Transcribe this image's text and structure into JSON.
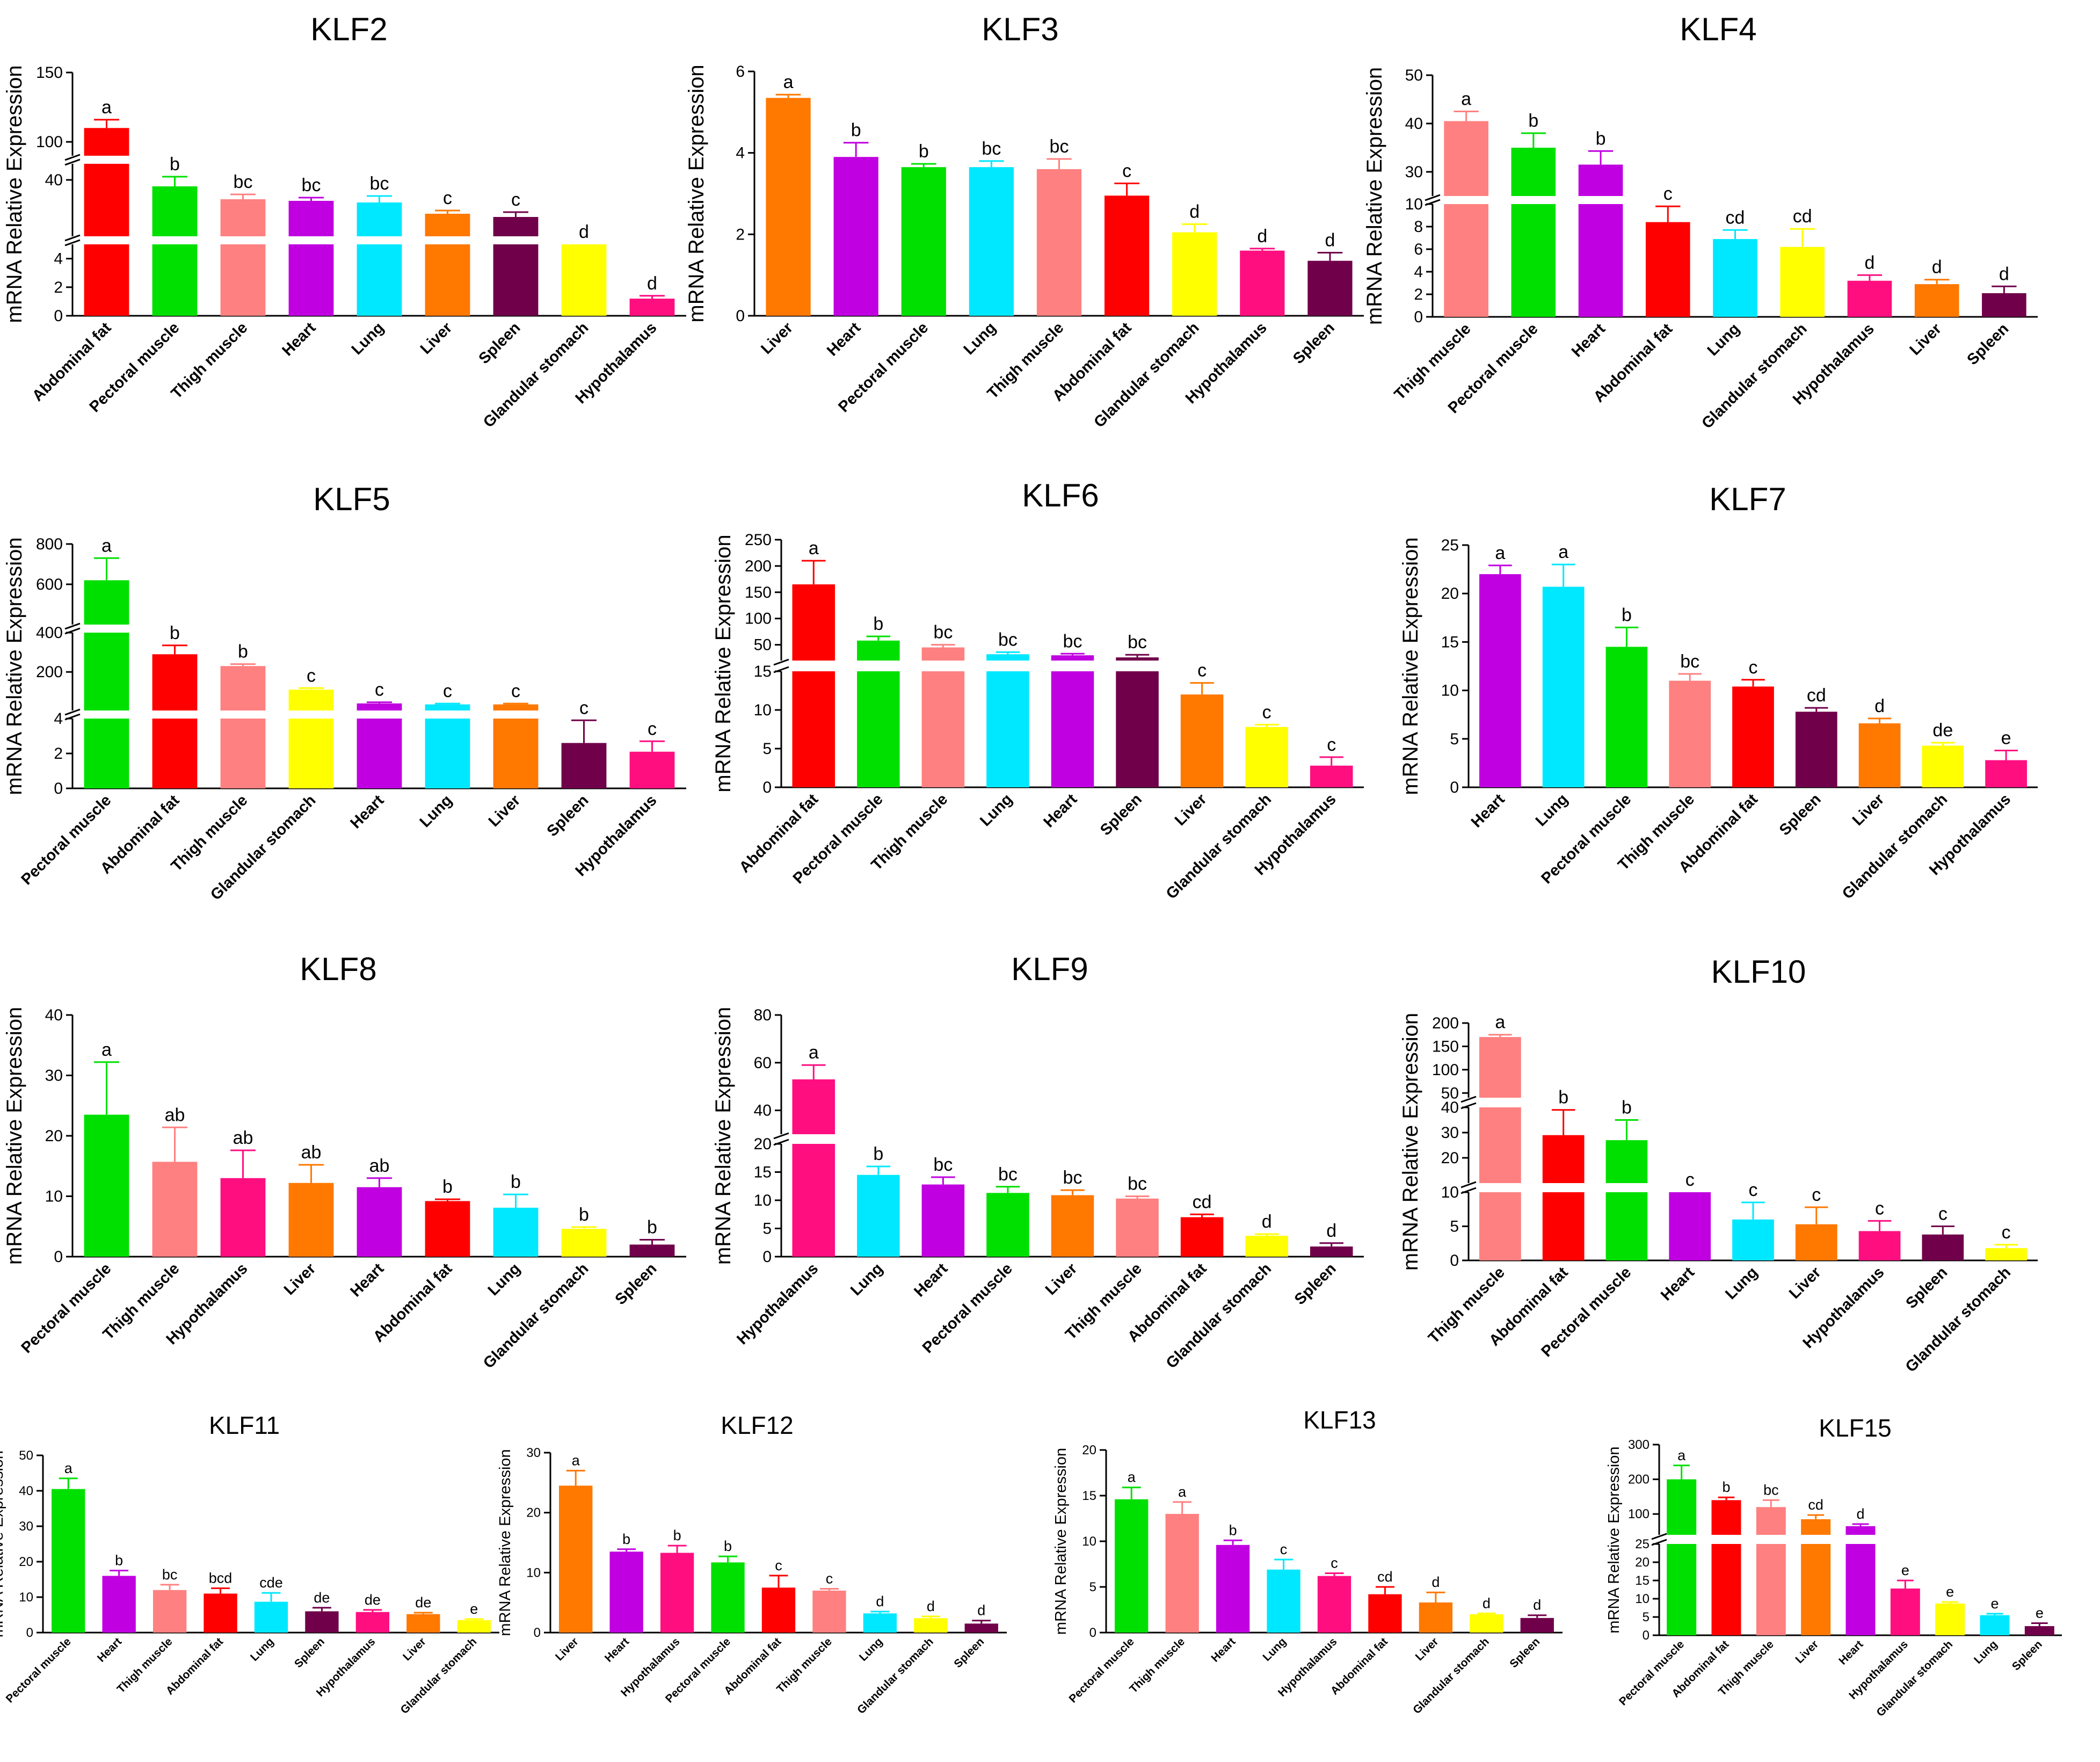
{
  "figure": {
    "ylabel": "mRNA Relative Expression"
  },
  "colors": {
    "red": "#ff0000",
    "green": "#00e000",
    "salmon": "#ff8080",
    "purple": "#c000e0",
    "cyan": "#00e8ff",
    "orange": "#ff7800",
    "maroon": "#70004a",
    "yellow": "#ffff00",
    "pink": "#ff0e80"
  },
  "chart_data": [
    {
      "type": "bar",
      "title": "KLF2",
      "ylabel": "mRNA Relative Expression",
      "segments": [
        {
          "min": 0,
          "max": 5,
          "ticks": [
            0,
            2,
            4
          ]
        },
        {
          "min": 5,
          "max": 50,
          "ticks": [
            40
          ]
        },
        {
          "min": 90,
          "max": 150,
          "ticks": [
            100,
            150
          ]
        }
      ],
      "categories": [
        "Abdominal fat",
        "Pectoral muscle",
        "Thigh muscle",
        "Heart",
        "Lung",
        "Liver",
        "Spleen",
        "Glandular stomach",
        "Hypothalamus"
      ],
      "colors": [
        "red",
        "green",
        "salmon",
        "purple",
        "cyan",
        "orange",
        "maroon",
        "yellow",
        "pink"
      ],
      "values": [
        110,
        36,
        28,
        27,
        26,
        19,
        17,
        5,
        1.2
      ],
      "errors": [
        6,
        6,
        3,
        2,
        4,
        2,
        3,
        0,
        0.2
      ],
      "letters": [
        "a",
        "b",
        "bc",
        "bc",
        "bc",
        "c",
        "c",
        "d",
        "d"
      ]
    },
    {
      "type": "bar",
      "title": "KLF3",
      "ylabel": "mRNA Relative Expression",
      "segments": [
        {
          "min": 0,
          "max": 6,
          "ticks": [
            0,
            2,
            4,
            6
          ]
        }
      ],
      "categories": [
        "Liver",
        "Heart",
        "Pectoral muscle",
        "Lung",
        "Thigh muscle",
        "Abdominal fat",
        "Glandular stomach",
        "Hypothalamus",
        "Spleen"
      ],
      "colors": [
        "orange",
        "purple",
        "green",
        "cyan",
        "salmon",
        "red",
        "yellow",
        "pink",
        "maroon"
      ],
      "values": [
        5.35,
        3.9,
        3.65,
        3.65,
        3.6,
        2.95,
        2.05,
        1.6,
        1.35
      ],
      "errors": [
        0.08,
        0.35,
        0.08,
        0.15,
        0.25,
        0.3,
        0.2,
        0.05,
        0.2
      ],
      "letters": [
        "a",
        "b",
        "b",
        "bc",
        "bc",
        "c",
        "d",
        "d",
        "d"
      ]
    },
    {
      "type": "bar",
      "title": "KLF4",
      "ylabel": "mRNA Relative Expression",
      "segments": [
        {
          "min": 0,
          "max": 10,
          "ticks": [
            0,
            2,
            4,
            6,
            8,
            10
          ]
        },
        {
          "min": 25,
          "max": 50,
          "ticks": [
            30,
            40,
            50
          ]
        }
      ],
      "categories": [
        "Thigh muscle",
        "Pectoral muscle",
        "Heart",
        "Abdominal fat",
        "Lung",
        "Glandular stomach",
        "Hypothalamus",
        "Liver",
        "Spleen"
      ],
      "colors": [
        "salmon",
        "green",
        "purple",
        "red",
        "cyan",
        "yellow",
        "pink",
        "orange",
        "maroon"
      ],
      "values": [
        40.5,
        35,
        31.5,
        8.4,
        6.9,
        6.2,
        3.2,
        2.9,
        2.1
      ],
      "errors": [
        2,
        3,
        2.8,
        1.4,
        0.8,
        1.6,
        0.5,
        0.4,
        0.6
      ],
      "letters": [
        "a",
        "b",
        "b",
        "c",
        "cd",
        "cd",
        "d",
        "d",
        "d"
      ]
    },
    {
      "type": "bar",
      "title": "KLF5",
      "ylabel": "mRNA Relative Expression",
      "segments": [
        {
          "min": 0,
          "max": 4,
          "ticks": [
            0,
            2,
            4
          ]
        },
        {
          "min": 4,
          "max": 400,
          "ticks": [
            200,
            400
          ]
        },
        {
          "min": 400,
          "max": 800,
          "ticks": [
            600,
            800
          ]
        }
      ],
      "categories": [
        "Pectoral muscle",
        "Abdominal fat",
        "Thigh muscle",
        "Glandular stomach",
        "Heart",
        "Lung",
        "Liver",
        "Spleen",
        "Hypothalamus"
      ],
      "colors": [
        "green",
        "red",
        "salmon",
        "yellow",
        "purple",
        "cyan",
        "orange",
        "maroon",
        "pink"
      ],
      "values": [
        620,
        290,
        230,
        110,
        40,
        35,
        35,
        2.6,
        2.1
      ],
      "errors": [
        110,
        45,
        10,
        8,
        6,
        4,
        4,
        1.3,
        0.6
      ],
      "letters": [
        "a",
        "b",
        "b",
        "c",
        "c",
        "c",
        "c",
        "c",
        "c"
      ]
    },
    {
      "type": "bar",
      "title": "KLF6",
      "ylabel": "mRNA Relative Expression",
      "segments": [
        {
          "min": 0,
          "max": 15,
          "ticks": [
            0,
            5,
            10,
            15
          ]
        },
        {
          "min": 20,
          "max": 250,
          "ticks": [
            50,
            100,
            150,
            200,
            250
          ]
        }
      ],
      "categories": [
        "Abdominal fat",
        "Pectoral muscle",
        "Thigh muscle",
        "Lung",
        "Heart",
        "Spleen",
        "Liver",
        "Glandular stomach",
        "Hypothalamus"
      ],
      "colors": [
        "red",
        "green",
        "salmon",
        "cyan",
        "purple",
        "maroon",
        "orange",
        "yellow",
        "pink"
      ],
      "values": [
        165,
        58,
        45,
        32,
        30,
        26,
        12,
        7.8,
        2.8
      ],
      "errors": [
        45,
        8,
        5,
        4,
        3,
        5,
        1.5,
        0.3,
        1.1
      ],
      "letters": [
        "a",
        "b",
        "bc",
        "bc",
        "bc",
        "bc",
        "c",
        "c",
        "c"
      ]
    },
    {
      "type": "bar",
      "title": "KLF7",
      "ylabel": "mRNA Relative Expression",
      "segments": [
        {
          "min": 0,
          "max": 25,
          "ticks": [
            0,
            5,
            10,
            15,
            20,
            25
          ]
        }
      ],
      "categories": [
        "Heart",
        "Lung",
        "Pectoral muscle",
        "Thigh muscle",
        "Abdominal fat",
        "Spleen",
        "Liver",
        "Glandular stomach",
        "Hypothalamus"
      ],
      "colors": [
        "purple",
        "cyan",
        "green",
        "salmon",
        "red",
        "maroon",
        "orange",
        "yellow",
        "pink"
      ],
      "values": [
        22,
        20.7,
        14.5,
        11,
        10.4,
        7.8,
        6.6,
        4.3,
        2.8
      ],
      "errors": [
        0.9,
        2.3,
        2,
        0.7,
        0.7,
        0.4,
        0.5,
        0.3,
        1
      ],
      "letters": [
        "a",
        "a",
        "b",
        "bc",
        "c",
        "cd",
        "d",
        "de",
        "e"
      ]
    },
    {
      "type": "bar",
      "title": "KLF8",
      "ylabel": "mRNA Relative Expression",
      "segments": [
        {
          "min": 0,
          "max": 40,
          "ticks": [
            0,
            10,
            20,
            30,
            40
          ]
        }
      ],
      "categories": [
        "Pectoral muscle",
        "Thigh muscle",
        "Hypothalamus",
        "Liver",
        "Heart",
        "Abdominal fat",
        "Lung",
        "Glandular stomach",
        "Spleen"
      ],
      "colors": [
        "green",
        "salmon",
        "pink",
        "orange",
        "purple",
        "red",
        "cyan",
        "yellow",
        "maroon"
      ],
      "values": [
        23.5,
        15.7,
        13,
        12.2,
        11.5,
        9.2,
        8.1,
        4.6,
        2
      ],
      "errors": [
        8.7,
        5.7,
        4.6,
        3,
        1.5,
        0.3,
        2.2,
        0.3,
        0.8
      ],
      "letters": [
        "a",
        "ab",
        "ab",
        "ab",
        "ab",
        "b",
        "b",
        "b",
        "b"
      ]
    },
    {
      "type": "bar",
      "title": "KLF9",
      "ylabel": "mRNA Relative Expression",
      "segments": [
        {
          "min": 0,
          "max": 20,
          "ticks": [
            0,
            5,
            10,
            15,
            20
          ]
        },
        {
          "min": 30,
          "max": 80,
          "ticks": [
            40,
            60,
            80
          ]
        }
      ],
      "categories": [
        "Hypothalamus",
        "Lung",
        "Heart",
        "Pectoral muscle",
        "Liver",
        "Thigh muscle",
        "Abdominal fat",
        "Glandular stomach",
        "Spleen"
      ],
      "colors": [
        "pink",
        "cyan",
        "purple",
        "green",
        "orange",
        "salmon",
        "red",
        "yellow",
        "maroon"
      ],
      "values": [
        53,
        14.5,
        12.8,
        11.3,
        10.9,
        10.3,
        7,
        3.7,
        1.8
      ],
      "errors": [
        6,
        1.5,
        1.3,
        1.1,
        0.9,
        0.4,
        0.5,
        0.3,
        0.6
      ],
      "letters": [
        "a",
        "b",
        "bc",
        "bc",
        "bc",
        "bc",
        "cd",
        "d",
        "d"
      ]
    },
    {
      "type": "bar",
      "title": "KLF10",
      "ylabel": "mRNA Relative Expression",
      "segments": [
        {
          "min": 0,
          "max": 10,
          "ticks": [
            0,
            5,
            10
          ]
        },
        {
          "min": 10,
          "max": 40,
          "ticks": [
            20,
            30,
            40
          ]
        },
        {
          "min": 40,
          "max": 200,
          "ticks": [
            50,
            100,
            150,
            200
          ]
        }
      ],
      "categories": [
        "Thigh muscle",
        "Abdominal fat",
        "Pectoral muscle",
        "Heart",
        "Lung",
        "Liver",
        "Hypothalamus",
        "Spleen",
        "Glandular stomach"
      ],
      "colors": [
        "salmon",
        "red",
        "green",
        "purple",
        "cyan",
        "orange",
        "pink",
        "maroon",
        "yellow"
      ],
      "values": [
        170,
        29,
        27,
        10,
        6,
        5.3,
        4.3,
        3.8,
        1.8
      ],
      "errors": [
        5,
        10,
        8,
        0,
        2.5,
        2.5,
        1.5,
        1.2,
        0.5
      ],
      "letters": [
        "a",
        "b",
        "b",
        "c",
        "c",
        "c",
        "c",
        "c",
        "c"
      ]
    },
    {
      "type": "bar",
      "title": "KLF11",
      "ylabel": "mRNA Relative Expression",
      "segments": [
        {
          "min": 0,
          "max": 50,
          "ticks": [
            0,
            10,
            20,
            30,
            40,
            50
          ]
        }
      ],
      "categories": [
        "Pectoral muscle",
        "Heart",
        "Thigh muscle",
        "Abdominal fat",
        "Lung",
        "Spleen",
        "Hypothalamus",
        "Liver",
        "Glandular stomach"
      ],
      "colors": [
        "green",
        "purple",
        "salmon",
        "red",
        "cyan",
        "maroon",
        "pink",
        "orange",
        "yellow"
      ],
      "values": [
        40.5,
        16,
        12,
        11,
        8.7,
        6,
        5.8,
        5.2,
        3.5
      ],
      "errors": [
        3,
        1.5,
        1.5,
        1.5,
        2.5,
        1,
        0.6,
        0.4,
        0.3
      ],
      "letters": [
        "a",
        "b",
        "bc",
        "bcd",
        "cde",
        "de",
        "de",
        "de",
        "e"
      ]
    },
    {
      "type": "bar",
      "title": "KLF12",
      "ylabel": "mRNA Relative Expression",
      "segments": [
        {
          "min": 0,
          "max": 30,
          "ticks": [
            0,
            10,
            20,
            30
          ]
        }
      ],
      "categories": [
        "Liver",
        "Heart",
        "Hypothalamus",
        "Pectoral muscle",
        "Abdominal fat",
        "Thigh muscle",
        "Lung",
        "Glandular stomach",
        "Spleen"
      ],
      "colors": [
        "orange",
        "purple",
        "pink",
        "green",
        "red",
        "salmon",
        "cyan",
        "yellow",
        "maroon"
      ],
      "values": [
        24.5,
        13.5,
        13.3,
        11.7,
        7.5,
        7,
        3.2,
        2.4,
        1.5
      ],
      "errors": [
        2.5,
        0.4,
        1.2,
        1,
        2,
        0.3,
        0.3,
        0.3,
        0.5
      ],
      "letters": [
        "a",
        "b",
        "b",
        "b",
        "c",
        "c",
        "d",
        "d",
        "d"
      ]
    },
    {
      "type": "bar",
      "title": "KLF13",
      "ylabel": "mRNA Relative Expression",
      "segments": [
        {
          "min": 0,
          "max": 20,
          "ticks": [
            0,
            5,
            10,
            15,
            20
          ]
        }
      ],
      "categories": [
        "Pectoral muscle",
        "Thigh muscle",
        "Heart",
        "Lung",
        "Hypothalamus",
        "Abdominal fat",
        "Liver",
        "Glandular stomach",
        "Spleen"
      ],
      "colors": [
        "green",
        "salmon",
        "purple",
        "cyan",
        "pink",
        "red",
        "orange",
        "yellow",
        "maroon"
      ],
      "values": [
        14.6,
        13,
        9.6,
        6.9,
        6.2,
        4.2,
        3.3,
        2,
        1.6
      ],
      "errors": [
        1.3,
        1.3,
        0.5,
        1.1,
        0.3,
        0.8,
        1.1,
        0.1,
        0.3
      ],
      "letters": [
        "a",
        "a",
        "b",
        "c",
        "c",
        "cd",
        "d",
        "d",
        "d"
      ]
    },
    {
      "type": "bar",
      "title": "KLF15",
      "ylabel": "mRNA Relative Expression",
      "segments": [
        {
          "min": 0,
          "max": 25,
          "ticks": [
            0,
            5,
            10,
            15,
            20,
            25
          ]
        },
        {
          "min": 40,
          "max": 300,
          "ticks": [
            100,
            200,
            300
          ]
        }
      ],
      "categories": [
        "Pectoral muscle",
        "Abdominal fat",
        "Thigh muscle",
        "Liver",
        "Heart",
        "Hypothalamus",
        "Glandular stomach",
        "Lung",
        "Spleen"
      ],
      "colors": [
        "green",
        "red",
        "salmon",
        "orange",
        "purple",
        "pink",
        "yellow",
        "cyan",
        "maroon"
      ],
      "values": [
        200,
        140,
        120,
        85,
        65,
        12.8,
        8.7,
        5.5,
        2.5
      ],
      "errors": [
        40,
        8,
        20,
        12,
        6,
        2.2,
        0.4,
        0.4,
        0.8
      ],
      "letters": [
        "a",
        "b",
        "bc",
        "cd",
        "d",
        "e",
        "e",
        "e",
        "e"
      ]
    }
  ]
}
